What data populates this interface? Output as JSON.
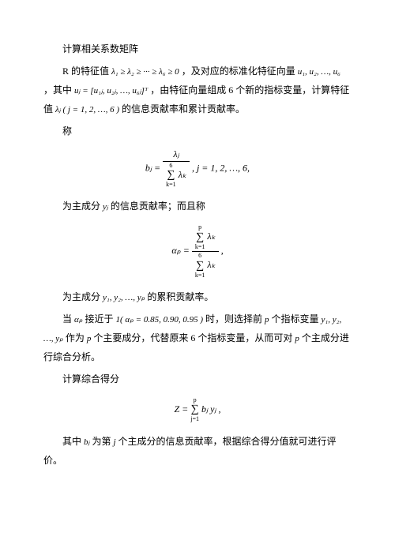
{
  "p1": "计算相关系数矩阵",
  "p2a": "R 的特征值",
  "eig": "λ₁ ≥ λ₂ ≥ ··· ≥ λ₆ ≥ 0",
  "p2b": "，及对应的标准化特征向量",
  "uvec": "u₁, u₂, …, u₆",
  "p2c": "，其中",
  "uj": "uⱼ = [u₁ⱼ, u₂ⱼ, …, u₆ⱼ]ᵀ",
  "p2d": "，由特征向量组成 6 个新的指标变量，计算特征值",
  "lamj": "λⱼ ( j = 1, 2, …, 6 )",
  "p2e": "的信息贡献率和累计贡献率。",
  "p3": "称",
  "eq1_tail": ",  j = 1, 2, …, 6,",
  "p4a": "为主成分",
  "yj": "yⱼ",
  "p4b": " 的信息贡献率；而且称",
  "p5a": "为主成分",
  "y1p": "y₁, y₂, …, yₚ",
  "p5b": " 的累积贡献率。",
  "p6a": "当",
  "ap": "αₚ",
  "p6b": " 接近于",
  "alpha_vals": "1( αₚ = 0.85, 0.90, 0.95 )",
  "p6c": " 时，则选择前",
  "pvar": "p",
  "p6d": " 个指标变量",
  "p7a": " 作为",
  "p7b": " 个主要成分，代替原来 6 个指标变量，从而可对",
  "p7c": " 个主成分进行综合分析。",
  "p8": "计算综合得分",
  "p9a": "其中",
  "bj": "bⱼ",
  "p9b": " 为第",
  "jvar": "j",
  "p9c": " 个主成分的信息贡献率，根据综合得分值就可进行评价。",
  "math": {
    "b_lhs": "bⱼ = ",
    "lambda_j": "λⱼ",
    "sum_top6": "6",
    "sum_bot": "k=1",
    "lambda_k": "λₖ",
    "alpha_lhs": "αₚ = ",
    "sum_top_p": "p",
    "Z_lhs": "Z = ",
    "Z_rhs": " bⱼ yⱼ",
    "sum_j1": "j=1",
    "comma": ","
  }
}
